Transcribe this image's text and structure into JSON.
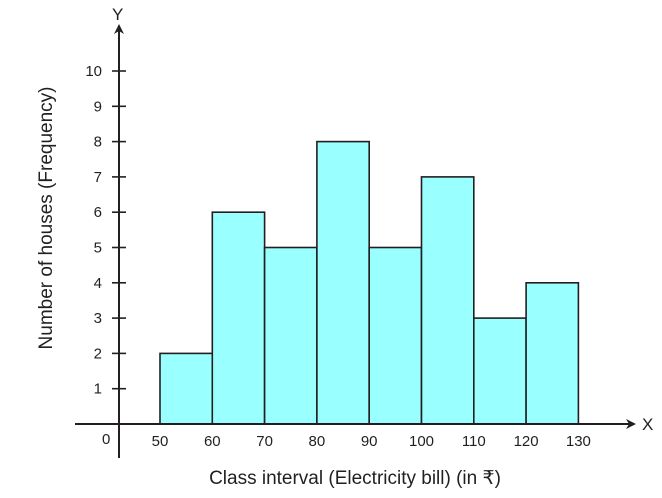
{
  "chart_data": {
    "type": "bar",
    "subtype": "histogram",
    "bin_edges": [
      50,
      60,
      70,
      80,
      90,
      100,
      110,
      120,
      130
    ],
    "values": [
      2,
      6,
      5,
      8,
      5,
      7,
      3,
      4
    ],
    "xlabel": "Class interval (Electricity bill) (in ₹)",
    "ylabel": "Number of houses (Frequency)",
    "x_axis_letter": "X",
    "y_axis_letter": "Y",
    "origin_label": "0",
    "x_ticks": [
      50,
      60,
      70,
      80,
      90,
      100,
      110,
      120,
      130
    ],
    "y_ticks": [
      1,
      2,
      3,
      4,
      5,
      6,
      7,
      8,
      9,
      10
    ],
    "ylim": [
      0,
      10
    ],
    "grid": false,
    "colors": {
      "bar_fill": "#99ffff",
      "bar_stroke": "#231f20",
      "axis": "#231f20"
    }
  }
}
